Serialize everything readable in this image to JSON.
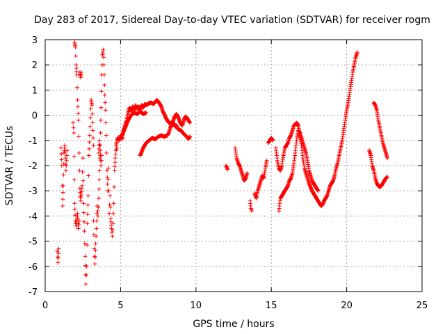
{
  "chart_data": {
    "type": "scatter",
    "title": "Day 283 of 2017, Sidereal Day-to-day VTEC variation (SDTVAR) for receiver rogm",
    "xlabel": "GPS time / hours",
    "ylabel": "SDTVAR / TECUs",
    "xlim": [
      0,
      25
    ],
    "ylim": [
      -7,
      3
    ],
    "xticks": [
      0,
      5,
      10,
      15,
      20,
      25
    ],
    "yticks": [
      3,
      2,
      1,
      0,
      -1,
      -2,
      -3,
      -4,
      -5,
      -6,
      -7
    ],
    "grid": true,
    "marker": "+",
    "color": "#ff0000",
    "segments": [
      {
        "name": "seg-a",
        "step": 0.02,
        "points": [
          [
            0.8,
            -5.4
          ],
          [
            0.85,
            -5.85
          ],
          [
            0.9,
            -5.3
          ]
        ]
      },
      {
        "name": "seg-b",
        "step": 0.02,
        "points": [
          [
            1.05,
            -1.3
          ],
          [
            1.1,
            -2.0
          ],
          [
            1.15,
            -3.6
          ],
          [
            1.2,
            -2.8
          ],
          [
            1.25,
            -1.5
          ],
          [
            1.3,
            -1.2
          ],
          [
            1.38,
            -2.2
          ],
          [
            1.45,
            -1.4
          ]
        ]
      },
      {
        "name": "seg-c",
        "step": 0.02,
        "points": [
          [
            1.85,
            -0.3
          ],
          [
            1.9,
            -0.7
          ],
          [
            1.95,
            -3.5
          ],
          [
            2.0,
            -4.2
          ],
          [
            2.05,
            -4.4
          ],
          [
            2.15,
            -3.9
          ],
          [
            2.2,
            -4.5
          ],
          [
            2.25,
            -4.2
          ]
        ]
      },
      {
        "name": "seg-d",
        "step": 0.02,
        "points": [
          [
            1.95,
            2.9
          ],
          [
            2.0,
            2.7
          ],
          [
            2.05,
            2.0
          ],
          [
            2.1,
            1.6
          ],
          [
            2.15,
            0.6
          ],
          [
            2.2,
            -0.2
          ],
          [
            2.25,
            -1.5
          ],
          [
            2.3,
            -2.9
          ],
          [
            2.35,
            -3.4
          ],
          [
            2.45,
            -2.8
          ],
          [
            2.5,
            -1.7
          ],
          [
            2.55,
            -3.5
          ],
          [
            2.6,
            -4.6
          ],
          [
            2.65,
            -5.6
          ],
          [
            2.7,
            -6.7
          ],
          [
            2.75,
            -6.0
          ],
          [
            2.8,
            -4.3
          ],
          [
            2.85,
            -3.2
          ],
          [
            2.9,
            -1.6
          ],
          [
            2.95,
            -0.8
          ],
          [
            3.0,
            -0.1
          ],
          [
            3.05,
            0.6
          ],
          [
            3.1,
            0.4
          ],
          [
            3.15,
            -0.3
          ],
          [
            3.2,
            -1.2
          ]
        ]
      },
      {
        "name": "seg-e",
        "step": 0.02,
        "points": [
          [
            2.3,
            1.7
          ],
          [
            2.35,
            1.5
          ],
          [
            2.4,
            1.7
          ]
        ]
      },
      {
        "name": "seg-f",
        "step": 0.02,
        "points": [
          [
            3.2,
            -4.2
          ],
          [
            3.25,
            -5.3
          ],
          [
            3.3,
            -5.9
          ],
          [
            3.35,
            -5.1
          ],
          [
            3.4,
            -4.5
          ],
          [
            3.45,
            -3.6
          ],
          [
            3.5,
            -4.0
          ],
          [
            3.55,
            -3.3
          ],
          [
            3.6,
            -2.2
          ],
          [
            3.65,
            -1.2
          ],
          [
            3.7,
            0.3
          ],
          [
            3.75,
            1.6
          ],
          [
            3.8,
            2.4
          ],
          [
            3.85,
            2.6
          ],
          [
            3.9,
            2.0
          ],
          [
            3.95,
            0.8
          ],
          [
            4.0,
            0.2
          ],
          [
            4.05,
            -0.8
          ],
          [
            4.1,
            -2.2
          ],
          [
            4.15,
            -3.0
          ],
          [
            4.2,
            -2.1
          ],
          [
            4.25,
            -3.9
          ],
          [
            4.3,
            -3.2
          ],
          [
            4.35,
            -4.1
          ],
          [
            4.4,
            -4.5
          ],
          [
            4.45,
            -4.8
          ],
          [
            4.5,
            -4.3
          ],
          [
            4.55,
            -3.5
          ],
          [
            4.6,
            -2.2
          ],
          [
            4.65,
            -1.7
          ],
          [
            4.7,
            -1.4
          ],
          [
            4.75,
            -1.3
          ]
        ]
      },
      {
        "name": "seg-g",
        "step": 0.02,
        "points": [
          [
            3.55,
            -1.5
          ],
          [
            3.6,
            -1.0
          ],
          [
            3.65,
            -1.4
          ],
          [
            3.7,
            -2.0
          ],
          [
            3.75,
            -1.6
          ]
        ]
      },
      {
        "name": "seg-h",
        "step": 0.02,
        "points": [
          [
            4.7,
            -1.2
          ],
          [
            4.8,
            -0.9
          ],
          [
            4.9,
            -1.0
          ],
          [
            5.0,
            -0.8
          ],
          [
            5.1,
            -0.95
          ],
          [
            5.2,
            -0.6
          ],
          [
            5.3,
            -0.4
          ],
          [
            5.4,
            -0.2
          ],
          [
            5.5,
            0.1
          ],
          [
            5.6,
            0.3
          ],
          [
            5.7,
            0.15
          ],
          [
            5.8,
            0.35
          ],
          [
            5.9,
            0.2
          ],
          [
            6.0,
            0.4
          ],
          [
            6.1,
            0.25
          ],
          [
            6.2,
            0.35
          ],
          [
            6.3,
            0.2
          ],
          [
            6.4,
            0.4
          ],
          [
            6.5,
            0.3
          ],
          [
            6.6,
            0.45
          ],
          [
            6.7,
            0.4
          ],
          [
            6.8,
            0.45
          ],
          [
            7.0,
            0.5
          ],
          [
            7.2,
            0.45
          ],
          [
            7.4,
            0.6
          ],
          [
            7.5,
            0.55
          ],
          [
            7.6,
            0.45
          ],
          [
            7.7,
            0.35
          ],
          [
            7.8,
            0.15
          ],
          [
            7.9,
            0.05
          ],
          [
            8.0,
            -0.1
          ],
          [
            8.1,
            -0.2
          ],
          [
            8.2,
            -0.3
          ],
          [
            8.3,
            -0.3
          ],
          [
            8.4,
            -0.4
          ],
          [
            8.5,
            -0.3
          ],
          [
            8.6,
            -0.45
          ],
          [
            8.7,
            -0.4
          ],
          [
            8.8,
            -0.55
          ],
          [
            9.0,
            -0.6
          ],
          [
            9.2,
            -0.75
          ],
          [
            9.4,
            -0.85
          ],
          [
            9.5,
            -0.95
          ],
          [
            9.6,
            -0.85
          ]
        ]
      },
      {
        "name": "seg-i",
        "step": 0.02,
        "points": [
          [
            6.3,
            -1.6
          ],
          [
            6.5,
            -1.3
          ],
          [
            6.7,
            -1.1
          ],
          [
            6.9,
            -1.0
          ],
          [
            7.1,
            -0.9
          ],
          [
            7.3,
            -0.95
          ],
          [
            7.5,
            -0.85
          ],
          [
            7.7,
            -0.8
          ],
          [
            7.9,
            -0.85
          ],
          [
            8.1,
            -0.8
          ],
          [
            8.2,
            -0.7
          ],
          [
            8.3,
            -0.5
          ],
          [
            8.4,
            -0.35
          ],
          [
            8.5,
            -0.2
          ],
          [
            8.6,
            -0.05
          ],
          [
            8.7,
            0.05
          ],
          [
            8.8,
            -0.05
          ],
          [
            8.9,
            -0.2
          ],
          [
            9.0,
            -0.35
          ],
          [
            9.1,
            -0.4
          ],
          [
            9.2,
            -0.2
          ],
          [
            9.3,
            -0.05
          ],
          [
            9.4,
            -0.1
          ],
          [
            9.5,
            -0.2
          ],
          [
            9.6,
            -0.3
          ]
        ]
      },
      {
        "name": "seg-j",
        "step": 0.02,
        "points": [
          [
            5.1,
            -0.8
          ],
          [
            5.3,
            -0.5
          ],
          [
            5.5,
            -0.2
          ],
          [
            5.7,
            0.0
          ],
          [
            5.9,
            0.1
          ],
          [
            6.1,
            0.05
          ],
          [
            6.3,
            0.15
          ],
          [
            6.5,
            0.05
          ],
          [
            6.7,
            0.1
          ]
        ]
      },
      {
        "name": "seg-k",
        "step": 0.02,
        "points": [
          [
            12.0,
            -2.0
          ],
          [
            12.1,
            -2.15
          ]
        ]
      },
      {
        "name": "seg-l",
        "step": 0.02,
        "points": [
          [
            12.6,
            -1.3
          ],
          [
            12.7,
            -1.7
          ],
          [
            12.8,
            -1.9
          ],
          [
            12.9,
            -2.0
          ],
          [
            13.0,
            -2.2
          ],
          [
            13.1,
            -2.4
          ],
          [
            13.2,
            -2.6
          ],
          [
            13.3,
            -2.5
          ],
          [
            13.4,
            -2.3
          ]
        ]
      },
      {
        "name": "seg-m",
        "step": 0.02,
        "points": [
          [
            13.6,
            -3.4
          ],
          [
            13.65,
            -3.7
          ],
          [
            13.7,
            -3.8
          ]
        ]
      },
      {
        "name": "seg-n",
        "step": 0.02,
        "points": [
          [
            13.9,
            -3.1
          ],
          [
            14.0,
            -3.3
          ],
          [
            14.1,
            -3.0
          ],
          [
            14.2,
            -2.8
          ],
          [
            14.3,
            -2.6
          ],
          [
            14.4,
            -2.4
          ],
          [
            14.5,
            -2.5
          ],
          [
            14.6,
            -2.1
          ],
          [
            14.7,
            -1.8
          ]
        ]
      },
      {
        "name": "seg-o",
        "step": 0.02,
        "points": [
          [
            14.8,
            -1.1
          ],
          [
            14.9,
            -1.0
          ],
          [
            15.0,
            -0.9
          ],
          [
            15.1,
            -1.0
          ]
        ]
      },
      {
        "name": "seg-p",
        "step": 0.02,
        "points": [
          [
            15.3,
            -1.3
          ],
          [
            15.4,
            -1.8
          ],
          [
            15.5,
            -2.1
          ],
          [
            15.6,
            -2.2
          ],
          [
            15.7,
            -2.0
          ],
          [
            15.8,
            -1.6
          ],
          [
            15.9,
            -1.3
          ],
          [
            16.0,
            -1.2
          ],
          [
            16.1,
            -1.1
          ],
          [
            16.2,
            -0.9
          ],
          [
            16.3,
            -0.8
          ],
          [
            16.4,
            -0.6
          ],
          [
            16.5,
            -0.4
          ],
          [
            16.6,
            -0.35
          ],
          [
            16.7,
            -0.3
          ],
          [
            16.8,
            -0.45
          ],
          [
            16.9,
            -0.8
          ],
          [
            17.0,
            -1.2
          ],
          [
            17.1,
            -1.7
          ],
          [
            17.2,
            -2.1
          ],
          [
            17.3,
            -2.3
          ],
          [
            17.4,
            -2.5
          ],
          [
            17.5,
            -2.7
          ],
          [
            17.6,
            -2.85
          ],
          [
            17.7,
            -3.0
          ],
          [
            17.8,
            -3.1
          ],
          [
            17.9,
            -3.2
          ],
          [
            18.0,
            -3.3
          ],
          [
            18.1,
            -3.4
          ],
          [
            18.2,
            -3.5
          ],
          [
            18.3,
            -3.6
          ],
          [
            18.4,
            -3.55
          ],
          [
            18.5,
            -3.4
          ],
          [
            18.6,
            -3.3
          ],
          [
            18.7,
            -3.2
          ],
          [
            18.8,
            -3.0
          ],
          [
            18.9,
            -2.8
          ],
          [
            19.0,
            -2.7
          ],
          [
            19.1,
            -2.6
          ],
          [
            19.2,
            -2.4
          ],
          [
            19.3,
            -2.1
          ],
          [
            19.4,
            -1.9
          ],
          [
            19.5,
            -1.6
          ],
          [
            19.6,
            -1.3
          ],
          [
            19.7,
            -1.0
          ],
          [
            19.8,
            -0.6
          ],
          [
            19.9,
            -0.2
          ],
          [
            20.0,
            0.2
          ],
          [
            20.1,
            0.5
          ],
          [
            20.2,
            0.9
          ],
          [
            20.3,
            1.3
          ],
          [
            20.4,
            1.7
          ],
          [
            20.5,
            2.0
          ],
          [
            20.6,
            2.3
          ],
          [
            20.7,
            2.5
          ]
        ]
      },
      {
        "name": "seg-q",
        "step": 0.02,
        "points": [
          [
            15.5,
            -3.8
          ],
          [
            15.6,
            -3.3
          ],
          [
            15.7,
            -3.2
          ],
          [
            15.8,
            -3.1
          ],
          [
            15.9,
            -3.0
          ],
          [
            16.0,
            -2.9
          ],
          [
            16.1,
            -2.8
          ],
          [
            16.2,
            -2.6
          ],
          [
            16.3,
            -2.5
          ],
          [
            16.4,
            -2.3
          ],
          [
            16.5,
            -1.9
          ],
          [
            16.6,
            -1.4
          ],
          [
            16.7,
            -0.9
          ],
          [
            16.8,
            -0.6
          ],
          [
            16.9,
            -0.7
          ],
          [
            17.0,
            -0.9
          ],
          [
            17.1,
            -1.1
          ],
          [
            17.2,
            -1.3
          ],
          [
            17.3,
            -1.5
          ],
          [
            17.4,
            -1.8
          ],
          [
            17.5,
            -2.2
          ],
          [
            17.6,
            -2.4
          ],
          [
            17.7,
            -2.6
          ],
          [
            17.8,
            -2.7
          ],
          [
            17.9,
            -2.8
          ],
          [
            18.0,
            -2.9
          ],
          [
            18.1,
            -3.0
          ]
        ]
      },
      {
        "name": "seg-r",
        "step": 0.02,
        "points": [
          [
            21.5,
            -1.4
          ],
          [
            21.6,
            -1.6
          ],
          [
            21.7,
            -2.0
          ],
          [
            21.8,
            -2.2
          ],
          [
            21.9,
            -2.5
          ],
          [
            22.0,
            -2.7
          ],
          [
            22.1,
            -2.8
          ],
          [
            22.2,
            -2.85
          ],
          [
            22.3,
            -2.8
          ],
          [
            22.4,
            -2.7
          ],
          [
            22.5,
            -2.6
          ],
          [
            22.6,
            -2.5
          ],
          [
            22.7,
            -2.45
          ]
        ]
      },
      {
        "name": "seg-s",
        "step": 0.02,
        "points": [
          [
            21.8,
            0.5
          ],
          [
            21.9,
            0.4
          ],
          [
            22.0,
            0.2
          ],
          [
            22.1,
            -0.2
          ],
          [
            22.2,
            -0.5
          ],
          [
            22.3,
            -0.8
          ],
          [
            22.4,
            -1.1
          ],
          [
            22.5,
            -1.3
          ],
          [
            22.6,
            -1.5
          ],
          [
            22.7,
            -1.7
          ]
        ]
      }
    ]
  }
}
